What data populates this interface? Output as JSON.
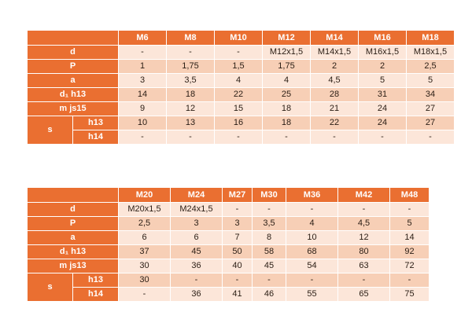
{
  "table1": {
    "headers": [
      "M6",
      "M8",
      "M10",
      "M12",
      "M14",
      "M16",
      "M18"
    ],
    "rows": {
      "d": {
        "label": "d",
        "values": [
          "-",
          "-",
          "-",
          "M12x1,5",
          "M14x1,5",
          "M16x1,5",
          "M18x1,5"
        ]
      },
      "P": {
        "label": "P",
        "values": [
          "1",
          "1,75",
          "1,5",
          "1,75",
          "2",
          "2",
          "2,5"
        ]
      },
      "a": {
        "label": "a",
        "values": [
          "3",
          "3,5",
          "4",
          "4",
          "4,5",
          "5",
          "5"
        ]
      },
      "d1": {
        "label": "d₁ h13",
        "values": [
          "14",
          "18",
          "22",
          "25",
          "28",
          "31",
          "34"
        ]
      },
      "m": {
        "label": "m  js15",
        "values": [
          "9",
          "12",
          "15",
          "18",
          "21",
          "24",
          "27"
        ]
      },
      "s_h13": {
        "group": "s",
        "label": "h13",
        "values": [
          "10",
          "13",
          "16",
          "18",
          "22",
          "24",
          "27"
        ]
      },
      "s_h14": {
        "label": "h14",
        "values": [
          "-",
          "-",
          "-",
          "-",
          "-",
          "-",
          "-"
        ]
      }
    }
  },
  "table2": {
    "headers": [
      "M20",
      "M24",
      "M27",
      "M30",
      "M36",
      "M42",
      "M48"
    ],
    "rows": {
      "d": {
        "label": "d",
        "values": [
          "M20x1,5",
          "M24x1,5",
          "-",
          "-",
          "-",
          "-",
          "-"
        ]
      },
      "P": {
        "label": "P",
        "values": [
          "2,5",
          "3",
          "3",
          "3,5",
          "4",
          "4,5",
          "5"
        ]
      },
      "a": {
        "label": "a",
        "values": [
          "6",
          "6",
          "7",
          "8",
          "10",
          "12",
          "14"
        ]
      },
      "d1": {
        "label": "d₁ h13",
        "values": [
          "37",
          "45",
          "50",
          "58",
          "68",
          "80",
          "92"
        ]
      },
      "m": {
        "label": "m  js13",
        "values": [
          "30",
          "36",
          "40",
          "45",
          "54",
          "63",
          "72"
        ]
      },
      "s_h13": {
        "group": "s",
        "label": "h13",
        "values": [
          "30",
          "-",
          "-",
          "-",
          "-",
          "-",
          "-"
        ]
      },
      "s_h14": {
        "label": "h14",
        "values": [
          "-",
          "36",
          "41",
          "46",
          "55",
          "65",
          "75"
        ]
      }
    }
  },
  "colors": {
    "header_orange": "#ea6f31",
    "row_dark": "#f7cfb6",
    "row_light": "#fce6d9"
  }
}
